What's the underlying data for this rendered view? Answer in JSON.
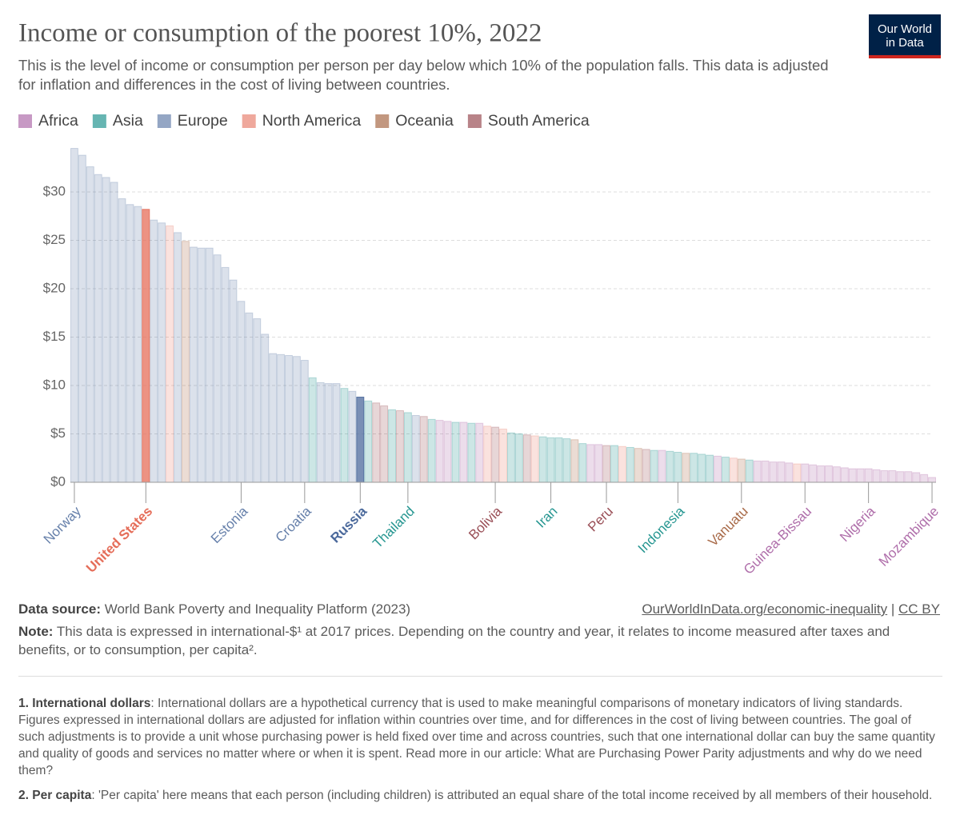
{
  "chart_data": {
    "type": "bar",
    "title": "Income or consumption of the poorest 10%, 2022",
    "subtitle": "This is the level of income or consumption per person per day below which 10% of the population falls. This data is adjusted for inflation and differences in the cost of living between countries.",
    "logo": [
      "Our World",
      "in Data"
    ],
    "categories": [
      "Norway",
      null,
      null,
      null,
      null,
      null,
      null,
      null,
      null,
      "United States",
      null,
      null,
      null,
      null,
      null,
      null,
      null,
      null,
      null,
      null,
      null,
      "Estonia",
      null,
      null,
      null,
      null,
      null,
      null,
      null,
      "Croatia",
      null,
      null,
      null,
      null,
      null,
      null,
      "Russia",
      null,
      null,
      null,
      null,
      null,
      "Thailand",
      null,
      null,
      null,
      null,
      null,
      null,
      null,
      null,
      null,
      null,
      "Bolivia",
      null,
      null,
      null,
      null,
      null,
      null,
      "Iran",
      null,
      null,
      null,
      null,
      null,
      null,
      "Peru",
      null,
      null,
      null,
      null,
      null,
      null,
      null,
      null,
      "Indonesia",
      null,
      null,
      null,
      null,
      null,
      null,
      null,
      "Vanuatu",
      null,
      null,
      null,
      null,
      null,
      null,
      null,
      "Guinea-Bissau",
      null,
      null,
      null,
      null,
      null,
      null,
      null,
      "Nigeria",
      null,
      null,
      null,
      null,
      null,
      null,
      null,
      "Mozambique"
    ],
    "series": [
      {
        "name": "Africa",
        "color": "#a2559c",
        "values": [
          null,
          null,
          null,
          null,
          null,
          null,
          null,
          null,
          null,
          null,
          null,
          null,
          null,
          null,
          null,
          null,
          null,
          null,
          null,
          null,
          null,
          null,
          null,
          null,
          null,
          null,
          null,
          null,
          null,
          null,
          null,
          null,
          null,
          null,
          null,
          null,
          null,
          null,
          null,
          null,
          null,
          null,
          null,
          null,
          null,
          null,
          6.4,
          6.3,
          null,
          6.2,
          null,
          6.1,
          null,
          null,
          null,
          null,
          null,
          null,
          null,
          null,
          null,
          null,
          null,
          null,
          null,
          3.9,
          3.9,
          null,
          null,
          null,
          null,
          null,
          null,
          null,
          3.3,
          null,
          null,
          null,
          null,
          null,
          null,
          2.7,
          null,
          null,
          null,
          null,
          2.2,
          2.2,
          2.1,
          2.1,
          2.0,
          null,
          1.9,
          1.8,
          1.7,
          1.7,
          1.6,
          1.5,
          1.4,
          1.4,
          1.4,
          1.3,
          1.2,
          1.2,
          1.1,
          1.1,
          1.0,
          0.8,
          0.5
        ]
      },
      {
        "name": "Asia",
        "color": "#00847e",
        "values": [
          null,
          null,
          null,
          null,
          null,
          null,
          null,
          null,
          null,
          null,
          null,
          null,
          null,
          null,
          null,
          null,
          null,
          null,
          null,
          null,
          null,
          null,
          null,
          null,
          null,
          null,
          null,
          null,
          null,
          null,
          10.8,
          null,
          null,
          null,
          9.7,
          null,
          null,
          8.4,
          null,
          null,
          7.5,
          null,
          7.2,
          null,
          null,
          6.5,
          null,
          null,
          6.2,
          null,
          6.1,
          null,
          null,
          null,
          null,
          5.1,
          5.0,
          null,
          null,
          4.7,
          4.6,
          4.6,
          4.5,
          null,
          4.0,
          null,
          null,
          null,
          3.8,
          null,
          3.6,
          null,
          null,
          3.3,
          null,
          3.2,
          3.1,
          null,
          3.0,
          2.9,
          2.8,
          null,
          2.6,
          null,
          null,
          2.3,
          null,
          null,
          null,
          null,
          null,
          null,
          null,
          null,
          null,
          null,
          null,
          null,
          null,
          null,
          null,
          null,
          null,
          null,
          null,
          null,
          null,
          null,
          null
        ]
      },
      {
        "name": "Europe",
        "color": "#4c6a9c",
        "values": [
          34.5,
          33.8,
          32.6,
          31.8,
          31.5,
          31.0,
          29.3,
          28.7,
          28.5,
          null,
          27.1,
          26.8,
          null,
          25.8,
          null,
          24.3,
          24.2,
          24.2,
          23.5,
          22.2,
          20.9,
          18.7,
          17.5,
          16.9,
          15.3,
          13.3,
          13.2,
          13.1,
          13.0,
          12.6,
          null,
          10.3,
          10.2,
          10.2,
          null,
          9.4,
          8.8,
          null,
          null,
          null,
          null,
          null,
          null,
          6.9,
          null,
          null,
          null,
          null,
          null,
          null,
          null,
          null,
          null,
          null,
          null,
          null,
          null,
          null,
          null,
          null,
          null,
          null,
          null,
          null,
          null,
          null,
          null,
          null,
          null,
          null,
          null,
          null,
          null,
          null,
          null,
          null,
          null,
          null,
          null,
          null,
          null,
          null,
          null,
          null,
          null,
          null,
          null,
          null,
          null,
          null,
          null,
          null,
          null,
          null,
          null,
          null,
          null,
          null,
          null,
          null,
          null,
          null,
          null,
          null,
          null,
          null,
          null,
          null,
          null
        ]
      },
      {
        "name": "North America",
        "color": "#e56e5a",
        "values": [
          null,
          null,
          null,
          null,
          null,
          null,
          null,
          null,
          null,
          28.2,
          null,
          null,
          26.5,
          null,
          null,
          null,
          null,
          null,
          null,
          null,
          null,
          null,
          null,
          null,
          null,
          null,
          null,
          null,
          null,
          null,
          null,
          null,
          null,
          null,
          null,
          null,
          null,
          null,
          null,
          null,
          null,
          null,
          null,
          null,
          null,
          null,
          null,
          null,
          null,
          null,
          null,
          null,
          5.8,
          null,
          5.5,
          null,
          null,
          null,
          4.8,
          null,
          null,
          null,
          null,
          null,
          null,
          null,
          null,
          null,
          null,
          3.7,
          null,
          null,
          null,
          null,
          null,
          null,
          null,
          null,
          null,
          null,
          null,
          null,
          null,
          2.5,
          null,
          null,
          null,
          null,
          null,
          null,
          null,
          1.9,
          null,
          null,
          null,
          null,
          null,
          null,
          null,
          null,
          null,
          null,
          null,
          null,
          null,
          null,
          null,
          null,
          null
        ]
      },
      {
        "name": "Oceania",
        "color": "#9a5129",
        "values": [
          null,
          null,
          null,
          null,
          null,
          null,
          null,
          null,
          null,
          null,
          null,
          null,
          null,
          null,
          24.9,
          null,
          null,
          null,
          null,
          null,
          null,
          null,
          null,
          null,
          null,
          null,
          null,
          null,
          null,
          null,
          null,
          null,
          null,
          null,
          null,
          null,
          null,
          null,
          null,
          null,
          null,
          null,
          null,
          null,
          null,
          null,
          null,
          null,
          null,
          null,
          null,
          null,
          null,
          null,
          null,
          null,
          null,
          null,
          null,
          null,
          null,
          null,
          null,
          4.4,
          null,
          null,
          null,
          null,
          null,
          null,
          null,
          3.5,
          null,
          null,
          null,
          null,
          null,
          3.0,
          null,
          null,
          null,
          null,
          null,
          null,
          2.4,
          null,
          null,
          null,
          null,
          null,
          null,
          null,
          null,
          null,
          null,
          null,
          null,
          null,
          null,
          null,
          null,
          null,
          null,
          null,
          null,
          null,
          null,
          null,
          null
        ]
      },
      {
        "name": "South America",
        "color": "#883039",
        "values": [
          null,
          null,
          null,
          null,
          null,
          null,
          null,
          null,
          null,
          null,
          null,
          null,
          null,
          null,
          null,
          null,
          null,
          null,
          null,
          null,
          null,
          null,
          null,
          null,
          null,
          null,
          null,
          null,
          null,
          null,
          null,
          null,
          null,
          null,
          null,
          null,
          null,
          null,
          8.2,
          7.9,
          null,
          7.4,
          null,
          null,
          6.8,
          null,
          null,
          null,
          null,
          null,
          null,
          null,
          null,
          5.7,
          null,
          null,
          null,
          4.9,
          null,
          null,
          null,
          null,
          null,
          null,
          null,
          null,
          null,
          3.8,
          null,
          null,
          null,
          null,
          3.4,
          null,
          null,
          null,
          null,
          null,
          null,
          null,
          null,
          null,
          null,
          null,
          null,
          null,
          null,
          null,
          null,
          null,
          null,
          null,
          null,
          null,
          null,
          null,
          null,
          null,
          null,
          null,
          null,
          null,
          null,
          null,
          null,
          null,
          null,
          null,
          null
        ]
      }
    ],
    "highlight": [
      9,
      36
    ],
    "ylim": [
      0,
      35
    ],
    "yticks": [
      {
        "value": 0,
        "label": "$0"
      },
      {
        "value": 5,
        "label": "$5"
      },
      {
        "value": 10,
        "label": "$10"
      },
      {
        "value": 15,
        "label": "$15"
      },
      {
        "value": 20,
        "label": "$20"
      },
      {
        "value": 25,
        "label": "$25"
      },
      {
        "value": 30,
        "label": "$30"
      }
    ],
    "grid": true,
    "source_label": "Data source:",
    "source": "World Bank Poverty and Inequality Platform (2023)",
    "link": "OurWorldInData.org/economic-inequality",
    "license": "CC BY",
    "note_label": "Note:",
    "note": "This data is expressed in international-$¹ at 2017 prices. Depending on the country and year, it relates to income measured after taxes and benefits, or to consumption, per capita².",
    "footnotes": [
      {
        "label": "1. International dollars",
        "text": ": International dollars are a hypothetical currency that is used to make meaningful comparisons of monetary indicators of living standards. Figures expressed in international dollars are adjusted for inflation within countries over time, and for differences in the cost of living between countries. The goal of such adjustments is to provide a unit whose purchasing power is held fixed over time and across countries, such that one international dollar can buy the same quantity and quality of goods and services no matter where or when it is spent. Read more in our article: What are Purchasing Power Parity adjustments and why do we need them?"
      },
      {
        "label": "2. Per capita",
        "text": ": 'Per capita' here means that each person (including children) is attributed an equal share of the total income received by all members of their household."
      }
    ]
  }
}
